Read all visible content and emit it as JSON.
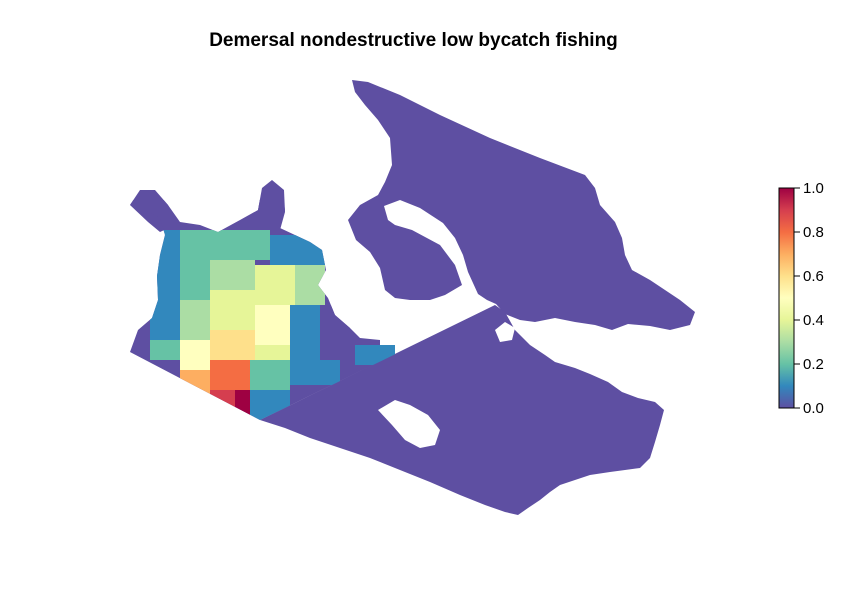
{
  "title": "Demersal nondestructive low bycatch fishing",
  "colors": {
    "background": "#ffffff",
    "base": "#5e4fa2",
    "ramp": [
      "#5e4fa2",
      "#3288bd",
      "#66c2a5",
      "#abdda4",
      "#e6f598",
      "#ffffbf",
      "#fee08b",
      "#fdae61",
      "#f46d43",
      "#d53e4f",
      "#9e0142"
    ]
  },
  "legend": {
    "min": 0.0,
    "max": 1.0,
    "ticks": [
      {
        "value": 0.0,
        "label": "0.0"
      },
      {
        "value": 0.2,
        "label": "0.2"
      },
      {
        "value": 0.4,
        "label": "0.4"
      },
      {
        "value": 0.6,
        "label": "0.6"
      },
      {
        "value": 0.8,
        "label": "0.8"
      },
      {
        "value": 1.0,
        "label": "1.0"
      }
    ]
  }
}
